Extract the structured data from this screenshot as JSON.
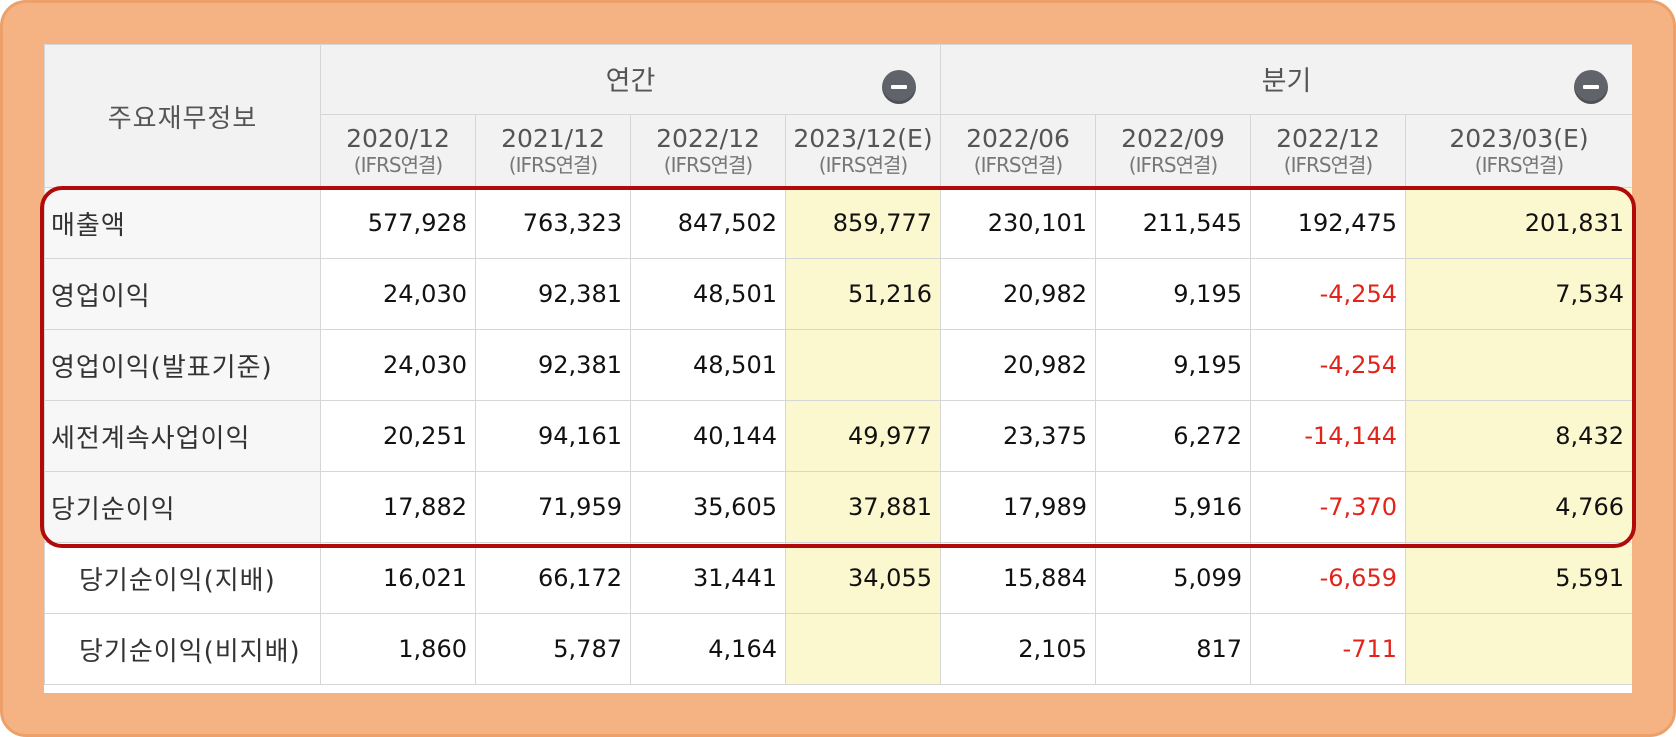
{
  "table": {
    "corner_label": "주요재무정보",
    "groups": [
      {
        "label": "연간",
        "control_icon": "collapse-minus-icon"
      },
      {
        "label": "분기",
        "control_icon": "collapse-minus-icon"
      }
    ],
    "columns": [
      {
        "period": "2020/12",
        "basis": "(IFRS연결)",
        "estimate": false
      },
      {
        "period": "2021/12",
        "basis": "(IFRS연결)",
        "estimate": false
      },
      {
        "period": "2022/12",
        "basis": "(IFRS연결)",
        "estimate": false
      },
      {
        "period": "2023/12(E)",
        "basis": "(IFRS연결)",
        "estimate": true
      },
      {
        "period": "2022/06",
        "basis": "(IFRS연결)",
        "estimate": false
      },
      {
        "period": "2022/09",
        "basis": "(IFRS연결)",
        "estimate": false
      },
      {
        "period": "2022/12",
        "basis": "(IFRS연결)",
        "estimate": false
      },
      {
        "period": "2023/03(E)",
        "basis": "(IFRS연결)",
        "estimate": true
      }
    ],
    "rows": [
      {
        "label": "매출액",
        "highlighted": true,
        "values": [
          "577,928",
          "763,323",
          "847,502",
          "859,777",
          "230,101",
          "211,545",
          "192,475",
          "201,831"
        ]
      },
      {
        "label": "영업이익",
        "highlighted": true,
        "values": [
          "24,030",
          "92,381",
          "48,501",
          "51,216",
          "20,982",
          "9,195",
          "-4,254",
          "7,534"
        ]
      },
      {
        "label": "영업이익(발표기준)",
        "highlighted": true,
        "values": [
          "24,030",
          "92,381",
          "48,501",
          "",
          "20,982",
          "9,195",
          "-4,254",
          ""
        ]
      },
      {
        "label": "세전계속사업이익",
        "highlighted": true,
        "values": [
          "20,251",
          "94,161",
          "40,144",
          "49,977",
          "23,375",
          "6,272",
          "-14,144",
          "8,432"
        ]
      },
      {
        "label": "당기순이익",
        "highlighted": true,
        "values": [
          "17,882",
          "71,959",
          "35,605",
          "37,881",
          "17,989",
          "5,916",
          "-7,370",
          "4,766"
        ]
      },
      {
        "label": "당기순이익(지배)",
        "highlighted": false,
        "values": [
          "16,021",
          "66,172",
          "31,441",
          "34,055",
          "15,884",
          "5,099",
          "-6,659",
          "5,591"
        ]
      },
      {
        "label": "당기순이익(비지배)",
        "highlighted": false,
        "values": [
          "1,860",
          "5,787",
          "4,164",
          "",
          "2,105",
          "817",
          "-711",
          ""
        ]
      }
    ]
  },
  "colors": {
    "frame": "#f5b384",
    "highlight_border": "#b00a0a",
    "estimate_fill": "#fbf8cf",
    "negative_text": "#e2231a",
    "header_fill": "#f2f2f2"
  }
}
